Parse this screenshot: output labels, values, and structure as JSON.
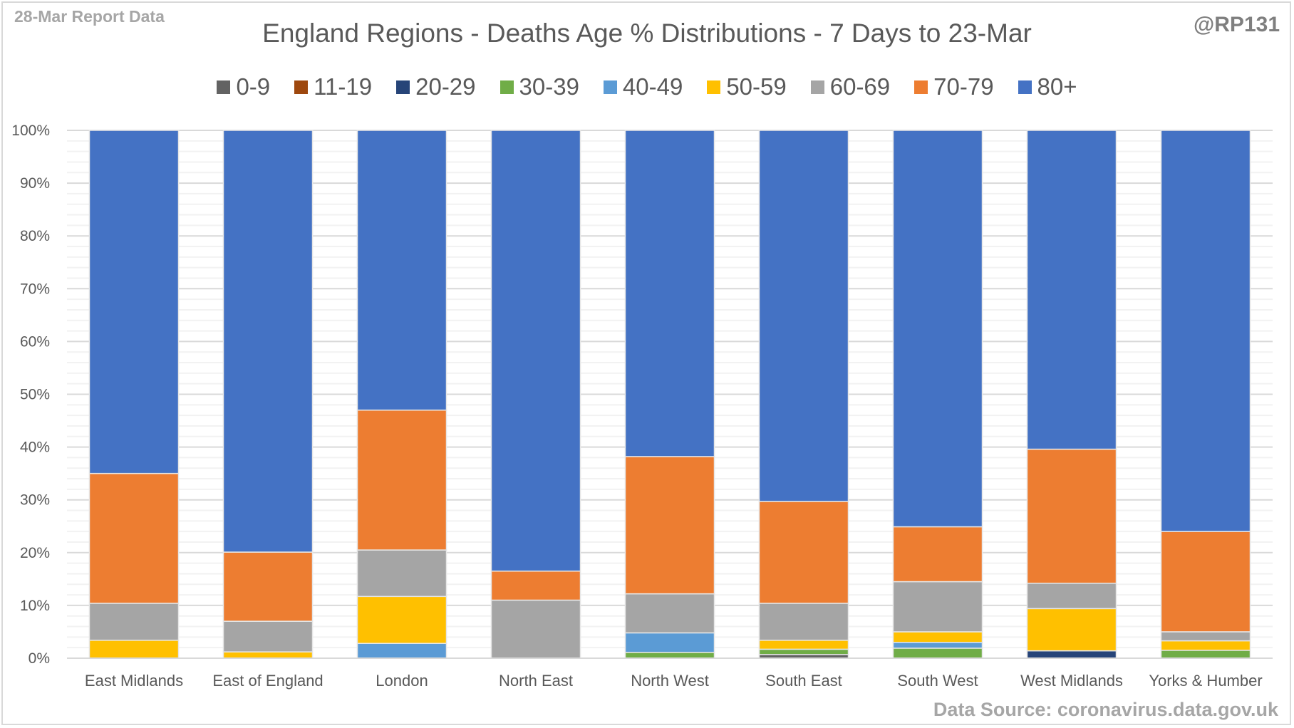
{
  "header": {
    "report_label": "28-Mar Report Data",
    "handle": "@RP131"
  },
  "footer": {
    "source": "Data Source: coronavirus.data.gov.uk"
  },
  "chart_data": {
    "type": "bar",
    "stacked": "percent",
    "title": "England Regions - Deaths Age % Distributions - 7 Days to 23-Mar",
    "xlabel": "",
    "ylabel": "",
    "ylim": [
      0,
      100
    ],
    "y_ticks": [
      "0%",
      "10%",
      "20%",
      "30%",
      "40%",
      "50%",
      "60%",
      "70%",
      "80%",
      "90%",
      "100%"
    ],
    "grid": "major every 10%, minor every 2%",
    "legend_position": "top-center",
    "categories": [
      "East Midlands",
      "East of England",
      "London",
      "North East",
      "North West",
      "South East",
      "South West",
      "West Midlands",
      "Yorks & Humber"
    ],
    "series": [
      {
        "name": "0-9",
        "color": "#636363",
        "values": [
          0,
          0,
          0,
          0,
          0,
          0.7,
          0,
          0,
          0
        ]
      },
      {
        "name": "11-19",
        "color": "#9e480e",
        "values": [
          0,
          0,
          0,
          0,
          0,
          0,
          0,
          0,
          0
        ]
      },
      {
        "name": "20-29",
        "color": "#264478",
        "values": [
          0,
          0,
          0,
          0,
          0,
          0,
          0,
          1.4,
          0
        ]
      },
      {
        "name": "30-39",
        "color": "#70ad47",
        "values": [
          0,
          0,
          0,
          0,
          1.1,
          1.0,
          1.9,
          0,
          1.5
        ]
      },
      {
        "name": "40-49",
        "color": "#5b9bd5",
        "values": [
          0,
          0,
          2.8,
          0,
          3.7,
          0,
          1.1,
          0,
          0
        ]
      },
      {
        "name": "50-59",
        "color": "#ffc000",
        "values": [
          3.4,
          1.2,
          8.9,
          0,
          0,
          1.7,
          2.0,
          8.0,
          1.8
        ]
      },
      {
        "name": "60-69",
        "color": "#a5a5a5",
        "values": [
          7.0,
          5.8,
          8.8,
          11.0,
          7.4,
          7.0,
          9.5,
          4.8,
          1.7
        ]
      },
      {
        "name": "70-79",
        "color": "#ed7d31",
        "values": [
          24.6,
          13.1,
          26.5,
          5.5,
          26.0,
          19.3,
          10.4,
          25.4,
          19.0
        ]
      },
      {
        "name": "80+",
        "color": "#4472c4",
        "values": [
          65.0,
          79.9,
          53.0,
          83.5,
          61.8,
          70.3,
          75.1,
          60.4,
          76.0
        ]
      }
    ]
  }
}
